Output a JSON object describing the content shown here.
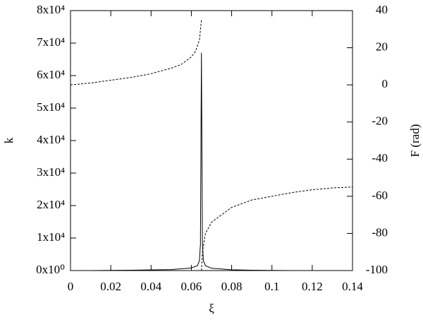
{
  "chart_data": {
    "type": "line",
    "xlabel": "ξ",
    "ylabel": "k",
    "y2label": "F (rad)",
    "xlim": [
      0,
      0.14
    ],
    "xticks": [
      0,
      0.02,
      0.04,
      0.06,
      0.08,
      0.1,
      0.12,
      0.14
    ],
    "ylim": [
      0,
      80000
    ],
    "yticks": [
      {
        "value": 0,
        "label": "0x10⁰"
      },
      {
        "value": 10000,
        "label": "1x10⁴"
      },
      {
        "value": 20000,
        "label": "2x10⁴"
      },
      {
        "value": 30000,
        "label": "3x10⁴"
      },
      {
        "value": 40000,
        "label": "4x10⁴"
      },
      {
        "value": 50000,
        "label": "5x10⁴"
      },
      {
        "value": 60000,
        "label": "6x10⁴"
      },
      {
        "value": 70000,
        "label": "7x10⁴"
      },
      {
        "value": 80000,
        "label": "8x10⁴"
      }
    ],
    "y2lim": [
      -100,
      40
    ],
    "y2ticks": [
      -100,
      -80,
      -60,
      -40,
      -20,
      0,
      20,
      40
    ],
    "series": [
      {
        "color": "#000000",
        "dash": false,
        "x": [
          0.01,
          0.03,
          0.05,
          0.06,
          0.063,
          0.064,
          0.0645,
          0.065,
          0.0655,
          0.066,
          0.067,
          0.07,
          0.08,
          0.09,
          0.11
        ],
        "values": [
          0,
          100,
          300,
          800,
          1500,
          3000,
          8000,
          67000,
          8000,
          3000,
          1500,
          700,
          250,
          100,
          0
        ]
      },
      {
        "color": "#000000",
        "dash": true,
        "axis": "y2",
        "x": [
          0,
          0.01,
          0.02,
          0.03,
          0.04,
          0.05,
          0.055,
          0.06,
          0.062,
          0.064,
          0.065,
          0.0651,
          0.065,
          0.0655,
          0.067,
          0.07,
          0.08,
          0.09,
          0.1,
          0.11,
          0.12,
          0.13,
          0.14
        ],
        "values": [
          0,
          1,
          2.5,
          4,
          6,
          9,
          11,
          15,
          18,
          24,
          35,
          null,
          -100,
          -90,
          -80,
          -74,
          -66,
          -62,
          -60,
          -58,
          -56.5,
          -55.5,
          -55
        ]
      }
    ]
  }
}
